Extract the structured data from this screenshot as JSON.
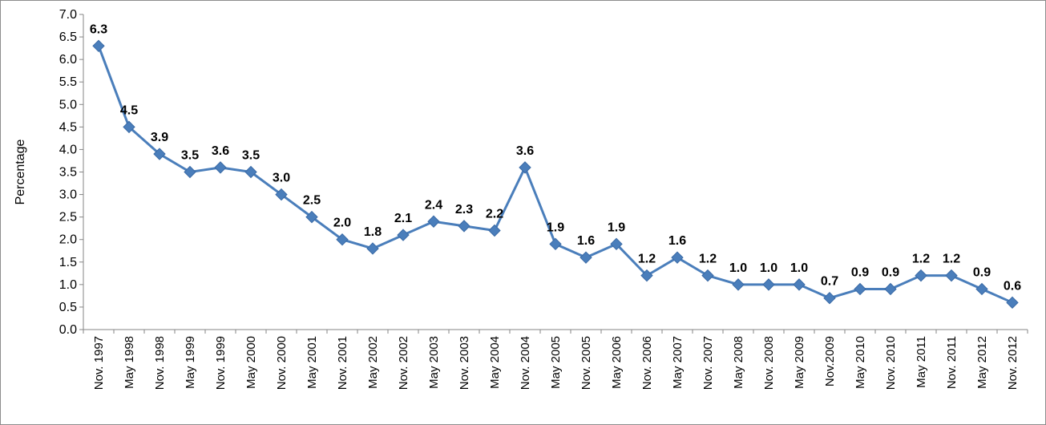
{
  "chart_data": {
    "type": "line",
    "ylabel": "Percentage",
    "xlabel": "",
    "title": "",
    "ylim": [
      0,
      7
    ],
    "ytick_step": 0.5,
    "grid": false,
    "legend": "none",
    "line_color": "#4a7ebb",
    "x": [
      "Nov. 1997",
      "May 1998",
      "Nov. 1998",
      "May 1999",
      "Nov. 1999",
      "May 2000",
      "Nov. 2000",
      "May 2001",
      "Nov. 2001",
      "May 2002",
      "Nov. 2002",
      "May 2003",
      "Nov. 2003",
      "May 2004",
      "Nov. 2004",
      "May 2005",
      "Nov. 2005",
      "May 2006",
      "Nov. 2006",
      "May 2007",
      "Nov. 2007",
      "May 2008",
      "Nov. 2008",
      "May 2009",
      "Nov.2009",
      "May 2010",
      "Nov. 2010",
      "May 2011",
      "Nov. 2011",
      "May 2012",
      "Nov. 2012"
    ],
    "values": [
      6.3,
      4.5,
      3.9,
      3.5,
      3.6,
      3.5,
      3.0,
      2.5,
      2.0,
      1.8,
      2.1,
      2.4,
      2.3,
      2.2,
      3.6,
      1.9,
      1.6,
      1.9,
      1.2,
      1.6,
      1.2,
      1.0,
      1.0,
      1.0,
      0.7,
      0.9,
      0.9,
      1.2,
      1.2,
      0.9,
      0.6
    ],
    "data_labels": [
      "6.3",
      "4.5",
      "3.9",
      "3.5",
      "3.6",
      "3.5",
      "3.0",
      "2.5",
      "2.0",
      "1.8",
      "2.1",
      "2.4",
      "2.3",
      "2.2",
      "3.6",
      "1.9",
      "1.6",
      "1.9",
      "1.2",
      "1.6",
      "1.2",
      "1.0",
      "1.0",
      "1.0",
      "0.7",
      "0.9",
      "0.9",
      "1.2",
      "1.2",
      "0.9",
      "0.6"
    ]
  }
}
